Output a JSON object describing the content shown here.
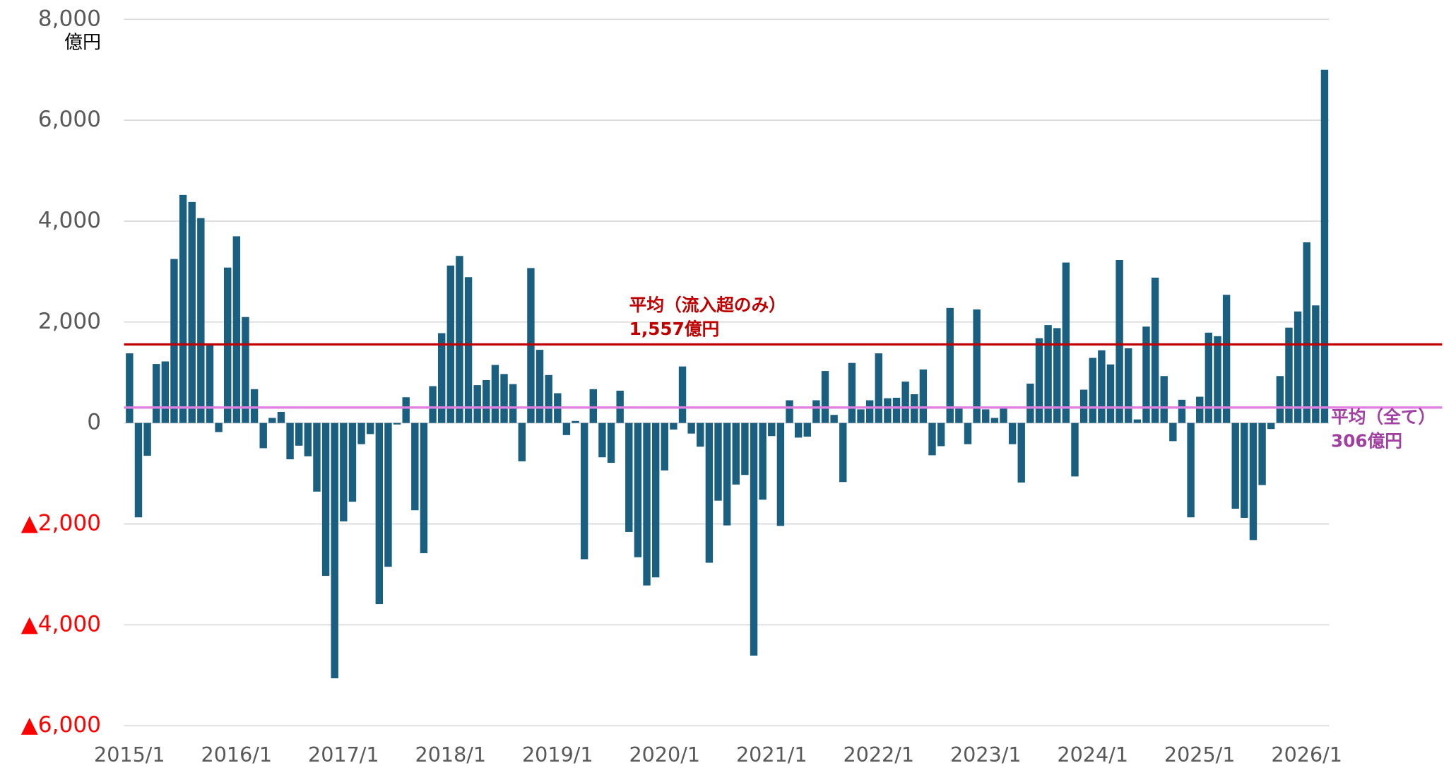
{
  "chart_data": {
    "type": "bar",
    "y_unit": "億円",
    "color": "#1a5f7f",
    "negative_tick_color": "#ff0000",
    "grid": true,
    "categories": [
      "2015/1",
      null,
      null,
      null,
      null,
      null,
      null,
      null,
      null,
      null,
      null,
      null,
      "2016/1",
      null,
      null,
      null,
      null,
      null,
      null,
      null,
      null,
      null,
      null,
      null,
      "2017/1",
      null,
      null,
      null,
      null,
      null,
      null,
      null,
      null,
      null,
      null,
      null,
      "2018/1",
      null,
      null,
      null,
      null,
      null,
      null,
      null,
      null,
      null,
      null,
      null,
      "2019/1",
      null,
      null,
      null,
      null,
      null,
      null,
      null,
      null,
      null,
      null,
      null,
      "2020/1",
      null,
      null,
      null,
      null,
      null,
      null,
      null,
      null,
      null,
      null,
      null,
      "2021/1",
      null,
      null,
      null,
      null,
      null,
      null,
      null,
      null,
      null,
      null,
      null,
      "2022/1",
      null,
      null,
      null,
      null,
      null,
      null,
      null,
      null,
      null,
      null,
      null,
      "2023/1",
      null,
      null,
      null,
      null,
      null,
      null,
      null,
      null,
      null,
      null,
      null,
      "2024/1",
      null,
      null,
      null,
      null,
      null,
      null,
      null,
      null,
      null,
      null,
      null,
      "2025/1",
      null,
      null,
      null,
      null,
      null,
      null,
      null,
      null,
      null,
      null,
      null,
      "2026/1",
      null,
      null
    ],
    "values": [
      1380,
      -1870,
      -650,
      1170,
      1220,
      3250,
      4520,
      4380,
      4060,
      1540,
      -180,
      3080,
      3700,
      2100,
      670,
      -500,
      100,
      220,
      -720,
      -450,
      -660,
      -1360,
      -3030,
      -5060,
      -1950,
      -1560,
      -420,
      -220,
      -3590,
      -2850,
      -30,
      510,
      -1730,
      -2580,
      730,
      1780,
      3120,
      3310,
      2890,
      750,
      850,
      1150,
      970,
      770,
      -760,
      3070,
      1450,
      950,
      590,
      -240,
      40,
      -2700,
      670,
      -680,
      -790,
      640,
      -2160,
      -2660,
      -3220,
      -3060,
      -940,
      -130,
      1120,
      -210,
      -470,
      -2770,
      -1540,
      -2030,
      -1220,
      -1030,
      -4610,
      -1520,
      -260,
      -2040,
      450,
      -290,
      -270,
      450,
      1030,
      160,
      -1170,
      1190,
      270,
      450,
      1380,
      490,
      500,
      820,
      570,
      1060,
      -640,
      -460,
      2280,
      310,
      -420,
      2250,
      270,
      100,
      300,
      -420,
      -1180,
      780,
      1680,
      1940,
      1880,
      3180,
      -1060,
      660,
      1290,
      1440,
      1160,
      3230,
      1480,
      70,
      1910,
      2880,
      930,
      -360,
      460,
      -1870,
      520,
      1790,
      1720,
      2540,
      -1700,
      -1880,
      -2320,
      -1230,
      -120,
      930,
      1890,
      2210,
      3580,
      2330,
      7000
    ],
    "ylim": [
      -6000,
      8000
    ],
    "yticks": [
      {
        "value": -6000,
        "label": "▲6,000"
      },
      {
        "value": -4000,
        "label": "▲4,000"
      },
      {
        "value": -2000,
        "label": "▲2,000"
      },
      0,
      {
        "value": 2000,
        "label": "2,000"
      },
      {
        "value": 4000,
        "label": "4,000"
      },
      {
        "value": 6000,
        "label": "6,000"
      },
      {
        "value": 8000,
        "label": "8,000"
      }
    ],
    "average_lines": [
      {
        "label": "平均（流入超のみ）",
        "value": 1557,
        "value_label": "1,557億円",
        "color": "#c00000"
      },
      {
        "label": "平均（全て）",
        "value": 306,
        "value_label": "306億円",
        "color": "#a040a0",
        "line_color": "#e080e0"
      }
    ]
  }
}
